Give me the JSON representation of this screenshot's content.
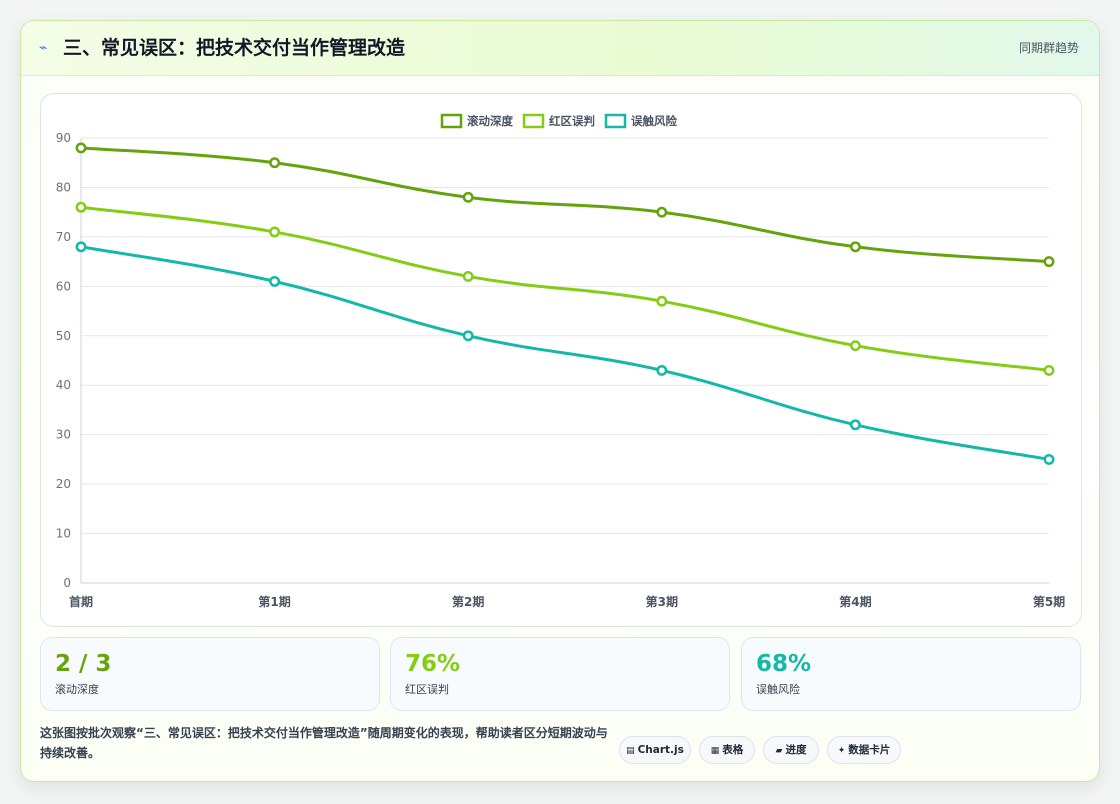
{
  "header": {
    "title_icon": "lightning-icon",
    "title": "三、常见误区：把技术交付当作管理改造",
    "right_label": "同期群趋势"
  },
  "chart_data": {
    "type": "line",
    "categories": [
      "首期",
      "第1期",
      "第2期",
      "第3期",
      "第4期",
      "第5期"
    ],
    "series": [
      {
        "name": "滚动深度",
        "color": "#65a30d",
        "values": [
          88,
          85,
          78,
          75,
          68,
          65
        ]
      },
      {
        "name": "红区误判",
        "color": "#84cc16",
        "values": [
          76,
          71,
          62,
          57,
          48,
          43
        ]
      },
      {
        "name": "误触风险",
        "color": "#14b8a6",
        "values": [
          68,
          61,
          50,
          43,
          32,
          25
        ]
      }
    ],
    "ylim": [
      0,
      90
    ],
    "yticks": [
      0,
      10,
      20,
      30,
      40,
      50,
      60,
      70,
      80,
      90
    ],
    "grid": true,
    "legend_position": "top-center"
  },
  "stats": [
    {
      "value": "2 / 3",
      "label": "滚动深度",
      "color": "#65a30d"
    },
    {
      "value": "76%",
      "label": "红区误判",
      "color": "#84cc16"
    },
    {
      "value": "68%",
      "label": "误触风险",
      "color": "#14b8a6"
    }
  ],
  "note": "这张图按批次观察“三、常见误区：把技术交付当作管理改造”随周期变化的表现，帮助读者区分短期波动与持续改善。",
  "chips": [
    {
      "icon": "▤",
      "icon_name": "chart-icon",
      "label": "Chart.js"
    },
    {
      "icon": "▦",
      "icon_name": "table-icon",
      "label": "表格"
    },
    {
      "icon": "▰",
      "icon_name": "progress-icon",
      "label": "进度"
    },
    {
      "icon": "✦",
      "icon_name": "card-icon",
      "label": "数据卡片"
    }
  ]
}
